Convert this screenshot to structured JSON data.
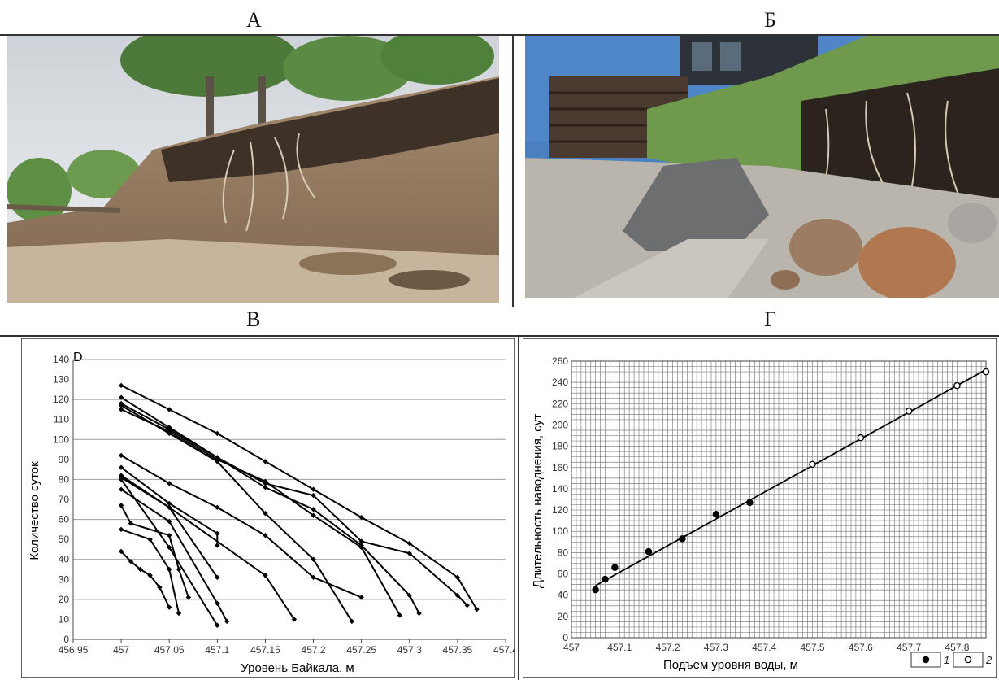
{
  "panels": {
    "a": {
      "letter": "А"
    },
    "b": {
      "letter": "Б"
    },
    "v": {
      "letter": "В"
    },
    "g": {
      "letter": "Г"
    }
  },
  "photo_a": {
    "subject": "eroded-bank-with-trees"
  },
  "photo_b": {
    "subject": "eroded-shore-with-house-and-boulders"
  },
  "colors": {
    "line": "#000000",
    "grid": "#9a9a9a",
    "dense_grid": "#808080"
  },
  "chart_data": [
    {
      "type": "line",
      "corner_label": "D",
      "xlabel": "Уровень Байкала, м",
      "ylabel": "Количество суток",
      "xlim": [
        456.95,
        457.4
      ],
      "ylim": [
        0,
        140
      ],
      "x_ticks": [
        "456.95",
        "457",
        "457.05",
        "457.1",
        "457.15",
        "457.2",
        "457.25",
        "457.3",
        "457.35",
        "457.4"
      ],
      "y_ticks": [
        "0",
        "10",
        "20",
        "30",
        "40",
        "50",
        "60",
        "70",
        "80",
        "90",
        "100",
        "110",
        "120",
        "130",
        "140"
      ],
      "grid": "horizontal every 20",
      "series": [
        {
          "points": [
            [
              457,
              127
            ],
            [
              457.05,
              115
            ],
            [
              457.1,
              103
            ],
            [
              457.15,
              89
            ],
            [
              457.2,
              75
            ],
            [
              457.25,
              61
            ],
            [
              457.3,
              48
            ],
            [
              457.35,
              31
            ],
            [
              457.37,
              15
            ]
          ]
        },
        {
          "points": [
            [
              457,
              121
            ],
            [
              457.05,
              106
            ],
            [
              457.1,
              91
            ],
            [
              457.15,
              78
            ],
            [
              457.2,
              72
            ],
            [
              457.25,
              49
            ],
            [
              457.3,
              43
            ],
            [
              457.35,
              22
            ],
            [
              457.36,
              17
            ]
          ]
        },
        {
          "points": [
            [
              457,
              118
            ],
            [
              457.05,
              105
            ],
            [
              457.1,
              91
            ],
            [
              457.15,
              76
            ],
            [
              457.2,
              65
            ],
            [
              457.25,
              47
            ],
            [
              457.3,
              22
            ],
            [
              457.31,
              13
            ]
          ]
        },
        {
          "points": [
            [
              457,
              117
            ],
            [
              457.05,
              103
            ],
            [
              457.1,
              89
            ],
            [
              457.15,
              63
            ],
            [
              457.2,
              40
            ],
            [
              457.24,
              9
            ]
          ]
        },
        {
          "points": [
            [
              457,
              115
            ],
            [
              457.05,
              104
            ],
            [
              457.1,
              90
            ],
            [
              457.15,
              79
            ],
            [
              457.2,
              62
            ],
            [
              457.25,
              46
            ],
            [
              457.29,
              12
            ]
          ]
        },
        {
          "points": [
            [
              457,
              92
            ],
            [
              457.05,
              78
            ],
            [
              457.1,
              66
            ],
            [
              457.15,
              52
            ],
            [
              457.2,
              31
            ],
            [
              457.25,
              21
            ]
          ]
        },
        {
          "points": [
            [
              457,
              86
            ],
            [
              457.05,
              68
            ],
            [
              457.1,
              53
            ],
            [
              457.1,
              47
            ]
          ]
        },
        {
          "points": [
            [
              457,
              81
            ],
            [
              457.05,
              66
            ],
            [
              457.1,
              31
            ]
          ]
        },
        {
          "points": [
            [
              457,
              82
            ],
            [
              457.05,
              66
            ],
            [
              457.15,
              32
            ],
            [
              457.18,
              10
            ]
          ]
        },
        {
          "points": [
            [
              457,
              75
            ],
            [
              457.05,
              59
            ],
            [
              457.1,
              18
            ],
            [
              457.11,
              9
            ]
          ]
        },
        {
          "points": [
            [
              457,
              80
            ],
            [
              457.05,
              46
            ],
            [
              457.1,
              7
            ]
          ]
        },
        {
          "points": [
            [
              457,
              67
            ],
            [
              457.01,
              58
            ],
            [
              457.05,
              52
            ],
            [
              457.06,
              35
            ],
            [
              457.07,
              21
            ]
          ]
        },
        {
          "points": [
            [
              457,
              55
            ],
            [
              457.03,
              50
            ],
            [
              457.05,
              35
            ],
            [
              457.06,
              13
            ]
          ]
        },
        {
          "points": [
            [
              457,
              44
            ],
            [
              457.01,
              39
            ],
            [
              457.02,
              35
            ],
            [
              457.03,
              32
            ],
            [
              457.04,
              26
            ],
            [
              457.05,
              16
            ]
          ]
        }
      ]
    },
    {
      "type": "scatter",
      "xlabel": "Подъем уровня воды, м",
      "ylabel": "Длительность наводнения, сут",
      "xlim": [
        457,
        457.86
      ],
      "ylim": [
        0,
        260
      ],
      "x_ticks": [
        "457",
        "457.1",
        "457.2",
        "457.3",
        "457.4",
        "457.5",
        "457.6",
        "457.7",
        "457.8"
      ],
      "y_ticks": [
        "0",
        "20",
        "40",
        "60",
        "80",
        "100",
        "120",
        "140",
        "160",
        "180",
        "200",
        "220",
        "240",
        "260"
      ],
      "grid": "dense, both axes",
      "legend": {
        "placement": "bottom-right",
        "items": [
          "1",
          "2"
        ]
      },
      "series": [
        {
          "name": "1",
          "marker": "filled",
          "points": [
            [
              457.05,
              45
            ],
            [
              457.07,
              55
            ],
            [
              457.09,
              66
            ],
            [
              457.16,
              81
            ],
            [
              457.23,
              93
            ],
            [
              457.3,
              116
            ],
            [
              457.37,
              127
            ]
          ]
        },
        {
          "name": "2",
          "marker": "open",
          "points": [
            [
              457.5,
              163
            ],
            [
              457.6,
              188
            ],
            [
              457.7,
              213
            ],
            [
              457.8,
              237
            ],
            [
              457.86,
              250
            ]
          ]
        }
      ],
      "trend": [
        [
          457.05,
          49
        ],
        [
          457.86,
          252
        ]
      ]
    }
  ]
}
